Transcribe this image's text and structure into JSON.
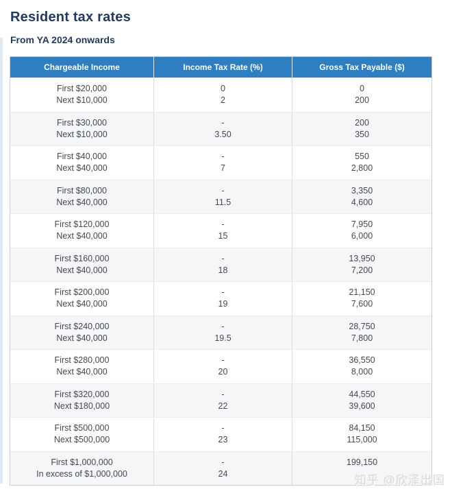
{
  "page": {
    "title": "Resident tax rates",
    "subtitle": "From YA 2024 onwards"
  },
  "table": {
    "columns": [
      "Chargeable Income",
      "Income Tax Rate (%)",
      "Gross Tax Payable ($)"
    ],
    "rows": [
      {
        "income": [
          "First $20,000",
          "Next $10,000"
        ],
        "rate": [
          "0",
          "2"
        ],
        "payable": [
          "0",
          "200"
        ]
      },
      {
        "income": [
          "First $30,000",
          "Next $10,000"
        ],
        "rate": [
          "-",
          "3.50"
        ],
        "payable": [
          "200",
          "350"
        ]
      },
      {
        "income": [
          "First $40,000",
          "Next $40,000"
        ],
        "rate": [
          "-",
          "7"
        ],
        "payable": [
          "550",
          "2,800"
        ]
      },
      {
        "income": [
          "First $80,000",
          "Next $40,000"
        ],
        "rate": [
          "-",
          "11.5"
        ],
        "payable": [
          "3,350",
          "4,600"
        ]
      },
      {
        "income": [
          "First $120,000",
          "Next $40,000"
        ],
        "rate": [
          "-",
          "15"
        ],
        "payable": [
          "7,950",
          "6,000"
        ]
      },
      {
        "income": [
          "First $160,000",
          "Next $40,000"
        ],
        "rate": [
          "-",
          "18"
        ],
        "payable": [
          "13,950",
          "7,200"
        ]
      },
      {
        "income": [
          "First $200,000",
          "Next $40,000"
        ],
        "rate": [
          "-",
          "19"
        ],
        "payable": [
          "21,150",
          "7,600"
        ]
      },
      {
        "income": [
          "First $240,000",
          "Next $40,000"
        ],
        "rate": [
          "-",
          "19.5"
        ],
        "payable": [
          "28,750",
          "7,800"
        ]
      },
      {
        "income": [
          "First $280,000",
          "Next $40,000"
        ],
        "rate": [
          "-",
          "20"
        ],
        "payable": [
          "36,550",
          "8,000"
        ]
      },
      {
        "income": [
          "First $320,000",
          "Next $180,000"
        ],
        "rate": [
          "-",
          "22"
        ],
        "payable": [
          "44,550",
          "39,600"
        ]
      },
      {
        "income": [
          "First $500,000",
          "Next $500,000"
        ],
        "rate": [
          "-",
          "23"
        ],
        "payable": [
          "84,150",
          "115,000"
        ]
      },
      {
        "income": [
          "First $1,000,000",
          "In excess of $1,000,000"
        ],
        "rate": [
          "-",
          "24"
        ],
        "payable": [
          "199,150",
          ""
        ]
      }
    ]
  },
  "watermark": "知乎 @欣泽出国",
  "colors": {
    "header_bg": "#2d7fc1",
    "heading_text": "#213a5e",
    "row_alt_bg": "#f5f6f8",
    "body_text": "#45494e",
    "table_border": "#ccd0d3"
  }
}
